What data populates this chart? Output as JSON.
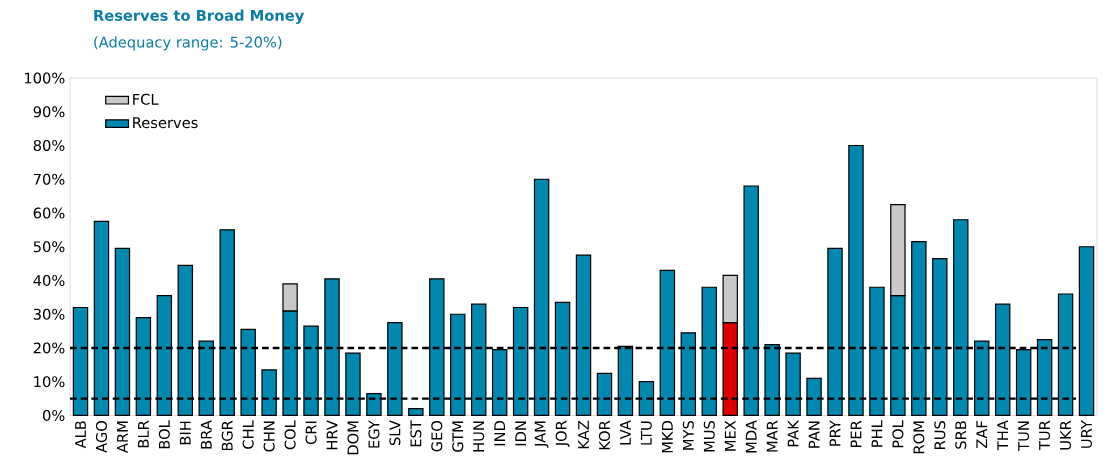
{
  "chart_data": {
    "type": "bar",
    "title": "Reserves to Broad Money",
    "subtitle": "(Adequacy range: 5-20%)",
    "categories": [
      "ALB",
      "AGO",
      "ARM",
      "BLR",
      "BOL",
      "BIH",
      "BRA",
      "BGR",
      "CHL",
      "CHN",
      "COL",
      "CRI",
      "HRV",
      "DOM",
      "EGY",
      "SLV",
      "EST",
      "GEO",
      "GTM",
      "HUN",
      "IND",
      "IDN",
      "JAM",
      "JOR",
      "KAZ",
      "KOR",
      "LVA",
      "LTU",
      "MKD",
      "MYS",
      "MUS",
      "MEX",
      "MDA",
      "MAR",
      "PAK",
      "PAN",
      "PRY",
      "PER",
      "PHL",
      "POL",
      "ROM",
      "RUS",
      "SRB",
      "ZAF",
      "THA",
      "TUN",
      "TUR",
      "UKR",
      "URY"
    ],
    "stacked": true,
    "series": [
      {
        "name": "Reserves",
        "color": "#0088b0",
        "colors": [
          "#0088b0",
          "#0088b0",
          "#0088b0",
          "#0088b0",
          "#0088b0",
          "#0088b0",
          "#0088b0",
          "#0088b0",
          "#0088b0",
          "#0088b0",
          "#0088b0",
          "#0088b0",
          "#0088b0",
          "#0088b0",
          "#0088b0",
          "#0088b0",
          "#0088b0",
          "#0088b0",
          "#0088b0",
          "#0088b0",
          "#0088b0",
          "#0088b0",
          "#0088b0",
          "#0088b0",
          "#0088b0",
          "#0088b0",
          "#0088b0",
          "#0088b0",
          "#0088b0",
          "#0088b0",
          "#0088b0",
          "#e00000",
          "#0088b0",
          "#0088b0",
          "#0088b0",
          "#0088b0",
          "#0088b0",
          "#0088b0",
          "#0088b0",
          "#0088b0",
          "#0088b0",
          "#0088b0",
          "#0088b0",
          "#0088b0",
          "#0088b0",
          "#0088b0",
          "#0088b0",
          "#0088b0",
          "#0088b0"
        ],
        "values": [
          32,
          57.5,
          49.5,
          29,
          35.5,
          44.5,
          22,
          55,
          25.5,
          13.5,
          31,
          26.5,
          40.5,
          18.5,
          6.5,
          27.5,
          2,
          40.5,
          30,
          33,
          19.5,
          32,
          70,
          33.5,
          47.5,
          12.5,
          20.5,
          10,
          43,
          24.5,
          38,
          27.5,
          68,
          21,
          18.5,
          11,
          49.5,
          80,
          38,
          35.5,
          51.5,
          46.5,
          58,
          22,
          33,
          19.5,
          22.5,
          36,
          50
        ]
      },
      {
        "name": "FCL",
        "color": "#c8c8c8",
        "values": [
          null,
          null,
          null,
          null,
          null,
          null,
          null,
          null,
          null,
          null,
          8,
          null,
          null,
          null,
          null,
          null,
          null,
          null,
          null,
          null,
          null,
          null,
          null,
          null,
          null,
          null,
          null,
          null,
          null,
          null,
          null,
          14,
          null,
          null,
          null,
          null,
          null,
          null,
          null,
          27,
          null,
          null,
          null,
          null,
          null,
          null,
          null,
          null,
          null
        ]
      }
    ],
    "ylim": [
      0,
      100
    ],
    "yticks": [
      {
        "value": 0,
        "label": "0%"
      },
      {
        "value": 10,
        "label": "10%"
      },
      {
        "value": 20,
        "label": "20%"
      },
      {
        "value": 30,
        "label": "30%"
      },
      {
        "value": 40,
        "label": "40%"
      },
      {
        "value": 50,
        "label": "50%"
      },
      {
        "value": 60,
        "label": "60%"
      },
      {
        "value": 70,
        "label": "70%"
      },
      {
        "value": 80,
        "label": "80%"
      },
      {
        "value": 90,
        "label": "90%"
      },
      {
        "value": 100,
        "label": "100%"
      }
    ],
    "ref_lines": [
      {
        "axis": "y",
        "value": 5,
        "color": "#000000",
        "line_style": "dashed"
      },
      {
        "axis": "y",
        "value": 20,
        "color": "#000000",
        "line_style": "dashed"
      }
    ],
    "legend": "top left"
  }
}
